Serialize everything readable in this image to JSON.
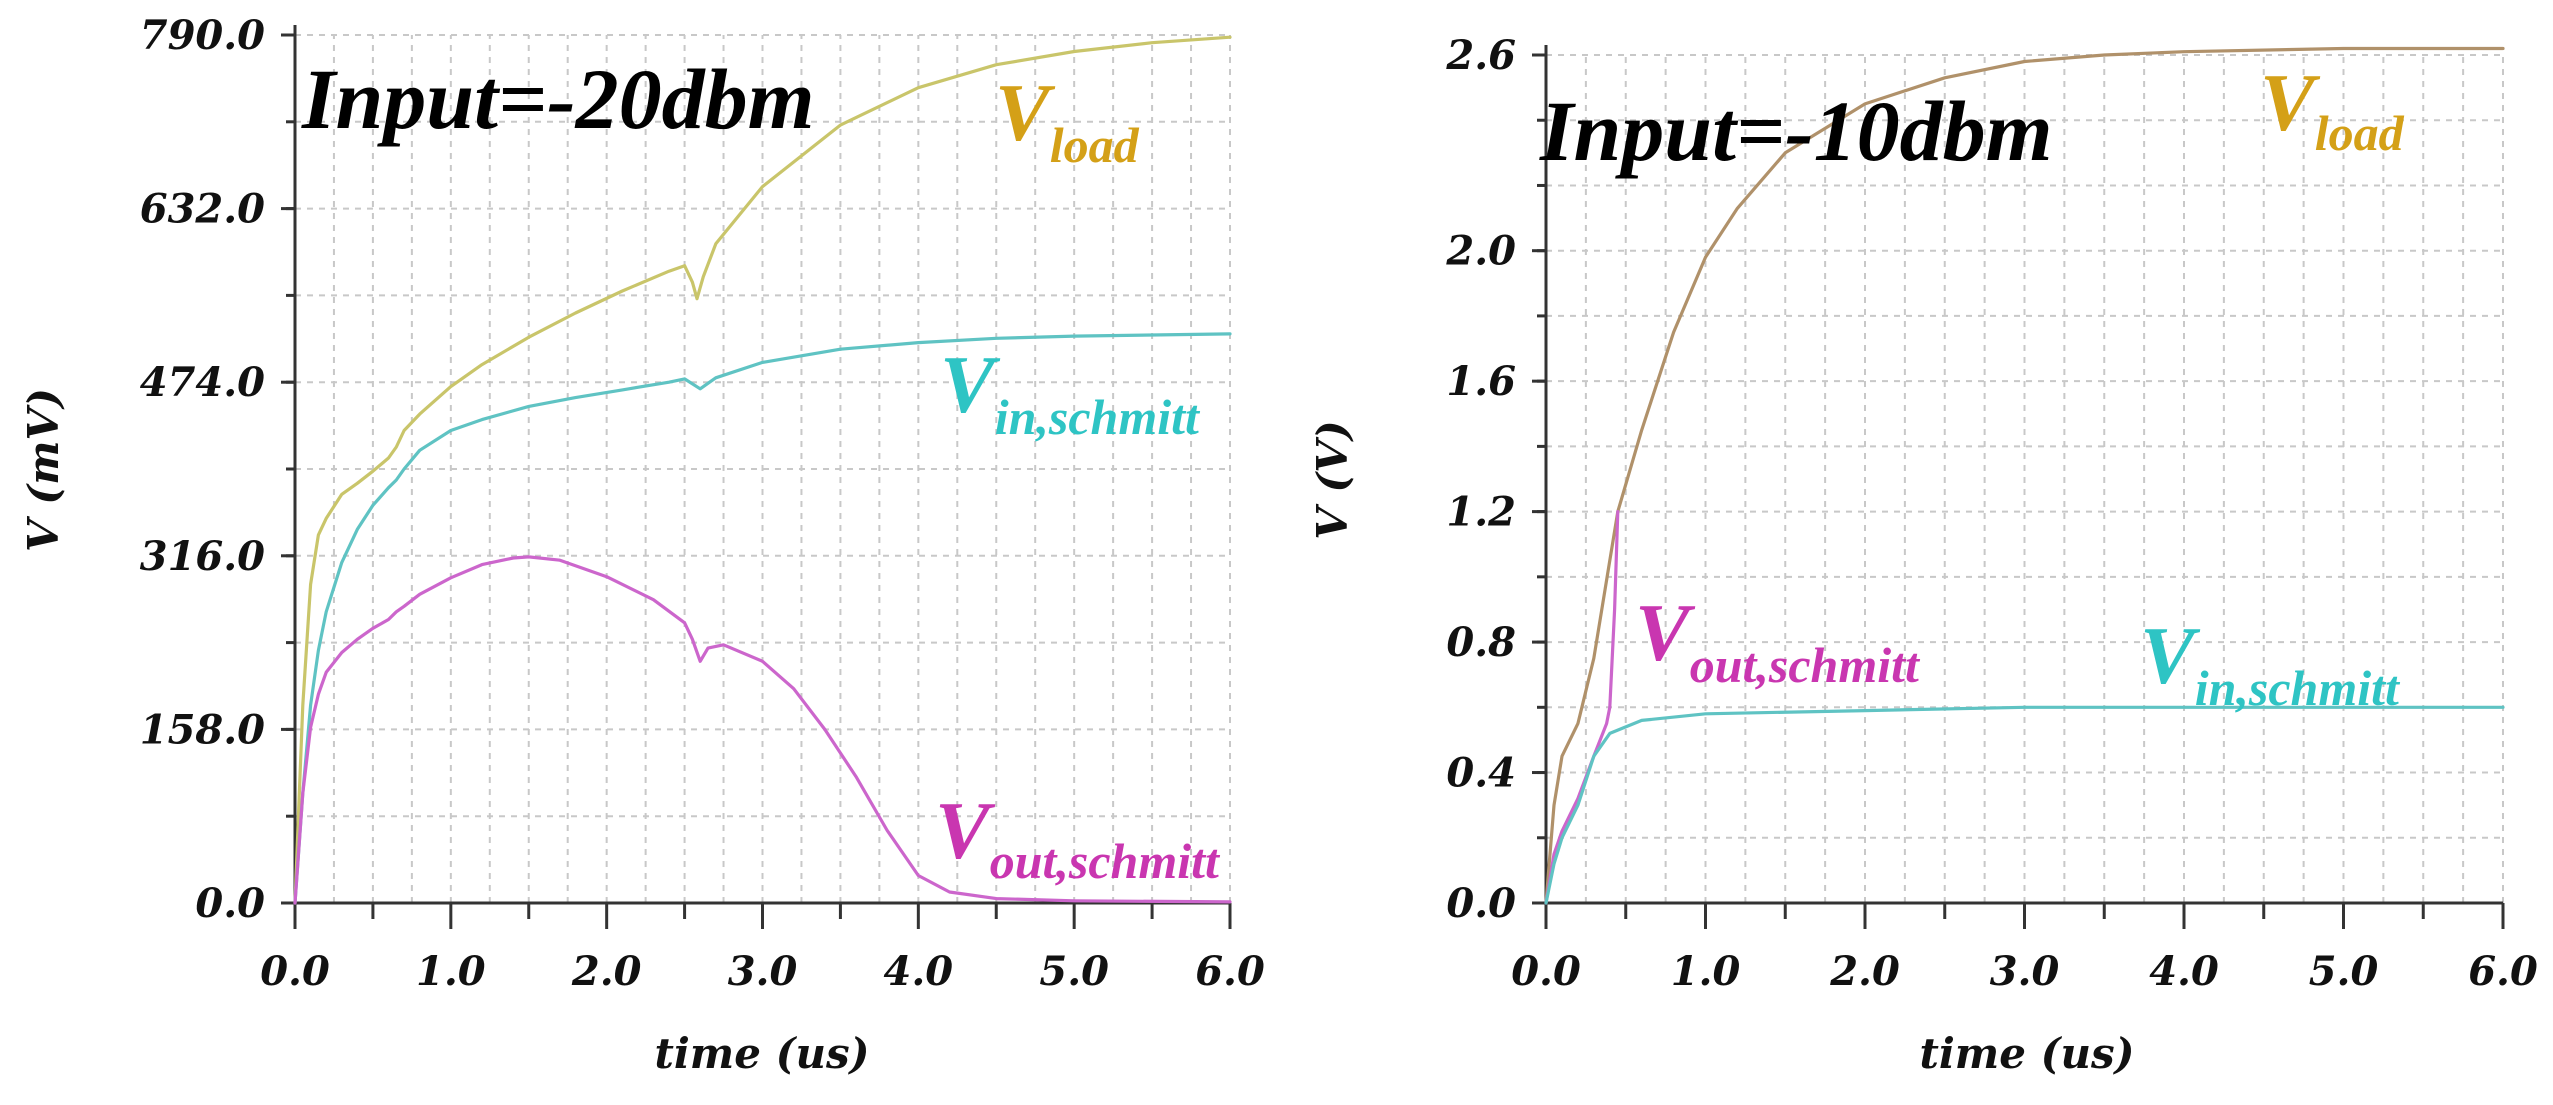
{
  "chart_data": [
    {
      "type": "line",
      "title": "Input=-20dbm",
      "xlabel": "time (us)",
      "ylabel": "V (mV)",
      "xlim": [
        0,
        6
      ],
      "ylim": [
        0,
        790
      ],
      "x_ticks": [
        "0.0",
        "1.0",
        "2.0",
        "3.0",
        "4.0",
        "5.0",
        "6.0"
      ],
      "y_ticks": [
        "0.0",
        "158.0",
        "316.0",
        "474.0",
        "632.0",
        "790.0"
      ],
      "grid": true,
      "series": [
        {
          "name_main": "V",
          "name_sub": "load",
          "color": "#c9c56a",
          "label_color": "#d4a017",
          "points": [
            [
              0,
              0
            ],
            [
              0.05,
              180
            ],
            [
              0.1,
              290
            ],
            [
              0.15,
              335
            ],
            [
              0.2,
              350
            ],
            [
              0.3,
              372
            ],
            [
              0.4,
              382
            ],
            [
              0.5,
              393
            ],
            [
              0.6,
              405
            ],
            [
              0.65,
              415
            ],
            [
              0.7,
              430
            ],
            [
              0.8,
              445
            ],
            [
              1.0,
              470
            ],
            [
              1.2,
              490
            ],
            [
              1.5,
              515
            ],
            [
              1.8,
              537
            ],
            [
              2.1,
              557
            ],
            [
              2.4,
              575
            ],
            [
              2.5,
              580
            ],
            [
              2.55,
              565
            ],
            [
              2.58,
              550
            ],
            [
              2.62,
              570
            ],
            [
              2.7,
              600
            ],
            [
              3.0,
              652
            ],
            [
              3.5,
              708
            ],
            [
              4.0,
              742
            ],
            [
              4.5,
              763
            ],
            [
              5.0,
              775
            ],
            [
              5.5,
              783
            ],
            [
              6.0,
              788
            ]
          ]
        },
        {
          "name_main": "V",
          "name_sub": "in,schmitt",
          "color": "#5fc3c3",
          "label_color": "#2ec4c4",
          "points": [
            [
              0,
              0
            ],
            [
              0.05,
              100
            ],
            [
              0.1,
              180
            ],
            [
              0.15,
              230
            ],
            [
              0.2,
              265
            ],
            [
              0.3,
              310
            ],
            [
              0.4,
              340
            ],
            [
              0.5,
              362
            ],
            [
              0.6,
              378
            ],
            [
              0.65,
              385
            ],
            [
              0.7,
              395
            ],
            [
              0.8,
              412
            ],
            [
              1.0,
              430
            ],
            [
              1.2,
              440
            ],
            [
              1.5,
              452
            ],
            [
              1.8,
              460
            ],
            [
              2.1,
              467
            ],
            [
              2.4,
              474
            ],
            [
              2.5,
              477
            ],
            [
              2.6,
              468
            ],
            [
              2.7,
              478
            ],
            [
              3.0,
              492
            ],
            [
              3.5,
              504
            ],
            [
              4.0,
              510
            ],
            [
              4.5,
              514
            ],
            [
              5.0,
              516
            ],
            [
              5.5,
              517
            ],
            [
              6.0,
              518
            ]
          ]
        },
        {
          "name_main": "V",
          "name_sub": "out,schmitt",
          "color": "#cc66cc",
          "label_color": "#c936b0",
          "points": [
            [
              0,
              0
            ],
            [
              0.05,
              100
            ],
            [
              0.1,
              160
            ],
            [
              0.15,
              190
            ],
            [
              0.2,
              210
            ],
            [
              0.3,
              228
            ],
            [
              0.4,
              240
            ],
            [
              0.5,
              250
            ],
            [
              0.6,
              258
            ],
            [
              0.65,
              265
            ],
            [
              0.7,
              270
            ],
            [
              0.8,
              281
            ],
            [
              1.0,
              296
            ],
            [
              1.2,
              308
            ],
            [
              1.4,
              314
            ],
            [
              1.5,
              315
            ],
            [
              1.7,
              312
            ],
            [
              2.0,
              297
            ],
            [
              2.3,
              276
            ],
            [
              2.5,
              255
            ],
            [
              2.55,
              240
            ],
            [
              2.6,
              220
            ],
            [
              2.65,
              232
            ],
            [
              2.75,
              235
            ],
            [
              3.0,
              220
            ],
            [
              3.2,
              195
            ],
            [
              3.4,
              158
            ],
            [
              3.6,
              115
            ],
            [
              3.8,
              66
            ],
            [
              4.0,
              25
            ],
            [
              4.2,
              10
            ],
            [
              4.5,
              4
            ],
            [
              5.0,
              2
            ],
            [
              6.0,
              1
            ]
          ]
        }
      ]
    },
    {
      "type": "line",
      "title": "Input=-10dbm",
      "xlabel": "time (us)",
      "ylabel": "V (V)",
      "xlim": [
        0,
        6
      ],
      "ylim": [
        0,
        2.6
      ],
      "x_ticks": [
        "0.0",
        "1.0",
        "2.0",
        "3.0",
        "4.0",
        "5.0",
        "6.0"
      ],
      "y_ticks": [
        "0.0",
        "0.4",
        "0.8",
        "1.2",
        "1.6",
        "2.0",
        "2.6"
      ],
      "y_tick_values": [
        0,
        0.4,
        0.8,
        1.2,
        1.6,
        2.0,
        2.6
      ],
      "grid": true,
      "series": [
        {
          "name_main": "V",
          "name_sub": "load",
          "color": "#b0916a",
          "label_color": "#d4a017",
          "points": [
            [
              0,
              0
            ],
            [
              0.05,
              0.3
            ],
            [
              0.1,
              0.45
            ],
            [
              0.2,
              0.55
            ],
            [
              0.3,
              0.75
            ],
            [
              0.4,
              1.05
            ],
            [
              0.45,
              1.2
            ],
            [
              0.6,
              1.45
            ],
            [
              0.8,
              1.75
            ],
            [
              1.0,
              1.98
            ],
            [
              1.2,
              2.13
            ],
            [
              1.5,
              2.3
            ],
            [
              2.0,
              2.45
            ],
            [
              2.5,
              2.53
            ],
            [
              3.0,
              2.58
            ],
            [
              3.5,
              2.6
            ],
            [
              4.0,
              2.61
            ],
            [
              5.0,
              2.62
            ],
            [
              6.0,
              2.62
            ]
          ]
        },
        {
          "name_main": "V",
          "name_sub": "out,schmitt",
          "color": "#cc66cc",
          "label_color": "#c936b0",
          "points": [
            [
              0,
              0
            ],
            [
              0.05,
              0.15
            ],
            [
              0.1,
              0.22
            ],
            [
              0.2,
              0.32
            ],
            [
              0.3,
              0.45
            ],
            [
              0.38,
              0.55
            ],
            [
              0.4,
              0.6
            ],
            [
              0.43,
              0.9
            ],
            [
              0.45,
              1.2
            ]
          ]
        },
        {
          "name_main": "V",
          "name_sub": "in,schmitt",
          "color": "#5fc3c3",
          "label_color": "#2ec4c4",
          "points": [
            [
              0,
              0
            ],
            [
              0.05,
              0.12
            ],
            [
              0.1,
              0.2
            ],
            [
              0.2,
              0.3
            ],
            [
              0.3,
              0.45
            ],
            [
              0.4,
              0.52
            ],
            [
              0.6,
              0.56
            ],
            [
              1.0,
              0.58
            ],
            [
              2.0,
              0.59
            ],
            [
              3.0,
              0.6
            ],
            [
              6.0,
              0.6
            ]
          ]
        }
      ]
    }
  ]
}
